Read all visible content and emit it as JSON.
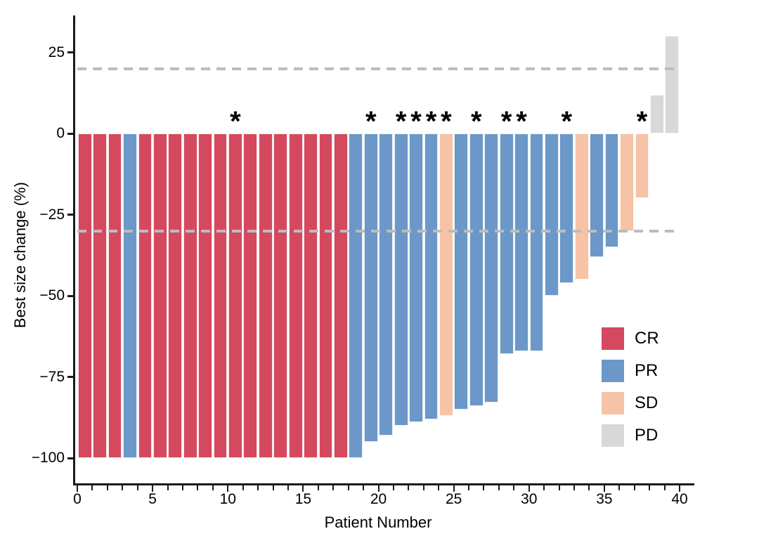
{
  "chart_data": {
    "type": "bar",
    "variant": "waterfall-tumor-response",
    "title": "",
    "xlabel": "Patient Number",
    "ylabel": "Best size change (%)",
    "grid": false,
    "background": "#ffffff",
    "x_range": [
      0,
      40
    ],
    "y_range": [
      -108,
      37
    ],
    "x_ticks_labeled": [
      0,
      5,
      10,
      15,
      20,
      25,
      30,
      35,
      40
    ],
    "x_minor_tick_every": 1,
    "y_ticks": [
      {
        "value": 25,
        "label": "25"
      },
      {
        "value": 0,
        "label": "0"
      },
      {
        "value": -25,
        "label": "−25"
      },
      {
        "value": -50,
        "label": "−50"
      },
      {
        "value": -75,
        "label": "−75"
      },
      {
        "value": -100,
        "label": "−100"
      }
    ],
    "reference_lines": [
      {
        "value": 20,
        "style": "dashed",
        "color": "#bcbcbc"
      },
      {
        "value": -30,
        "style": "dashed",
        "color": "#bcbcbc"
      }
    ],
    "annotation_symbol": "*",
    "legend_position": "inside-right",
    "legend": [
      {
        "label": "CR",
        "color": "#d5495f"
      },
      {
        "label": "PR",
        "color": "#6b98c8"
      },
      {
        "label": "SD",
        "color": "#f6c3a6"
      },
      {
        "label": "PD",
        "color": "#d8d8d8"
      }
    ],
    "patients": [
      {
        "n": 1,
        "response": "CR",
        "value": -100,
        "asterisk": false
      },
      {
        "n": 2,
        "response": "CR",
        "value": -100,
        "asterisk": false
      },
      {
        "n": 3,
        "response": "CR",
        "value": -100,
        "asterisk": false
      },
      {
        "n": 4,
        "response": "PR",
        "value": -100,
        "asterisk": false
      },
      {
        "n": 5,
        "response": "CR",
        "value": -100,
        "asterisk": false
      },
      {
        "n": 6,
        "response": "CR",
        "value": -100,
        "asterisk": false
      },
      {
        "n": 7,
        "response": "CR",
        "value": -100,
        "asterisk": false
      },
      {
        "n": 8,
        "response": "CR",
        "value": -100,
        "asterisk": false
      },
      {
        "n": 9,
        "response": "CR",
        "value": -100,
        "asterisk": false
      },
      {
        "n": 10,
        "response": "CR",
        "value": -100,
        "asterisk": false
      },
      {
        "n": 11,
        "response": "CR",
        "value": -100,
        "asterisk": true
      },
      {
        "n": 12,
        "response": "CR",
        "value": -100,
        "asterisk": false
      },
      {
        "n": 13,
        "response": "CR",
        "value": -100,
        "asterisk": false
      },
      {
        "n": 14,
        "response": "CR",
        "value": -100,
        "asterisk": false
      },
      {
        "n": 15,
        "response": "CR",
        "value": -100,
        "asterisk": false
      },
      {
        "n": 16,
        "response": "CR",
        "value": -100,
        "asterisk": false
      },
      {
        "n": 17,
        "response": "CR",
        "value": -100,
        "asterisk": false
      },
      {
        "n": 18,
        "response": "CR",
        "value": -100,
        "asterisk": false
      },
      {
        "n": 19,
        "response": "PR",
        "value": -100,
        "asterisk": false
      },
      {
        "n": 20,
        "response": "PR",
        "value": -95,
        "asterisk": true
      },
      {
        "n": 21,
        "response": "PR",
        "value": -93,
        "asterisk": false
      },
      {
        "n": 22,
        "response": "PR",
        "value": -90,
        "asterisk": true
      },
      {
        "n": 23,
        "response": "PR",
        "value": -89,
        "asterisk": true
      },
      {
        "n": 24,
        "response": "PR",
        "value": -88,
        "asterisk": true
      },
      {
        "n": 25,
        "response": "SD",
        "value": -87,
        "asterisk": true
      },
      {
        "n": 26,
        "response": "PR",
        "value": -85,
        "asterisk": false
      },
      {
        "n": 27,
        "response": "PR",
        "value": -84,
        "asterisk": true
      },
      {
        "n": 28,
        "response": "PR",
        "value": -83,
        "asterisk": false
      },
      {
        "n": 29,
        "response": "PR",
        "value": -68,
        "asterisk": true
      },
      {
        "n": 30,
        "response": "PR",
        "value": -67,
        "asterisk": true
      },
      {
        "n": 31,
        "response": "PR",
        "value": -67,
        "asterisk": false
      },
      {
        "n": 32,
        "response": "PR",
        "value": -50,
        "asterisk": false
      },
      {
        "n": 33,
        "response": "PR",
        "value": -46,
        "asterisk": true
      },
      {
        "n": 34,
        "response": "SD",
        "value": -45,
        "asterisk": false
      },
      {
        "n": 35,
        "response": "PR",
        "value": -38,
        "asterisk": false
      },
      {
        "n": 36,
        "response": "PR",
        "value": -35,
        "asterisk": false
      },
      {
        "n": 37,
        "response": "SD",
        "value": -30,
        "asterisk": false
      },
      {
        "n": 38,
        "response": "SD",
        "value": -20,
        "asterisk": true
      },
      {
        "n": 39,
        "response": "PD",
        "value": 12,
        "asterisk": false
      },
      {
        "n": 40,
        "response": "PD",
        "value": 30,
        "asterisk": false
      }
    ]
  }
}
